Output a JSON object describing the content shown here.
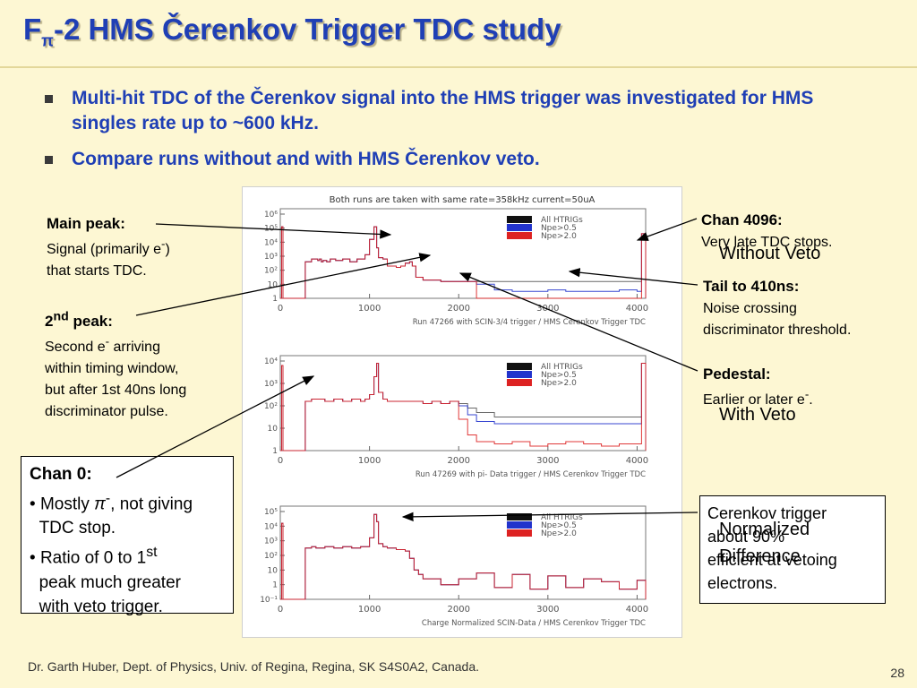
{
  "title": {
    "main": "F",
    "sub": "π",
    "rest": "-2 HMS Čerenkov Trigger TDC study"
  },
  "bullets": [
    "Multi-hit TDC of the Čerenkov signal into the HMS trigger was investigated for HMS singles rate up to ~600 kHz.",
    "Compare runs without and with HMS Čerenkov veto."
  ],
  "plots": {
    "header": "Both runs are taken with same rate=358kHz current=50uA",
    "panels": [
      {
        "caption": "Run 47266 with SCIN-3/4 trigger / HMS Cerenkov Trigger TDC",
        "y_ticks": [
          "10⁶",
          "10⁵",
          "10⁴",
          "10³",
          "10²",
          "10",
          "1"
        ]
      },
      {
        "caption": "Run 47269 with pi- Data trigger / HMS Cerenkov Trigger TDC",
        "y_ticks": [
          "10⁴",
          "10³",
          "10²",
          "10",
          "1"
        ]
      },
      {
        "caption": "Charge Normalized SCIN-Data / HMS Cerenkov Trigger TDC",
        "y_ticks": [
          "10⁵",
          "10⁴",
          "10³",
          "10²",
          "10",
          "1",
          "10⁻¹"
        ]
      }
    ],
    "x_ticks": [
      "0",
      "1000",
      "2000",
      "3000",
      "4000"
    ],
    "legend": [
      "All HTRIGs",
      "Npe>0.5",
      "Npe>2.0"
    ]
  },
  "chart_data": {
    "type": "line",
    "title": "Both runs are taken with same rate=358kHz current=50uA",
    "xlim": [
      0,
      4096
    ],
    "x_ticks": [
      0,
      1000,
      2000,
      3000,
      4000
    ],
    "log_y": true,
    "legend_placement": "top-right",
    "series": [
      {
        "name": "All HTRIGs",
        "color": "#111111"
      },
      {
        "name": "Npe>0.5",
        "color": "#2233cc"
      },
      {
        "name": "Npe>2.0",
        "color": "#dd2222"
      }
    ],
    "panels": [
      {
        "caption": "Run 47266 with SCIN-3/4 trigger / HMS Cerenkov Trigger TDC",
        "ylim_exp": [
          0,
          6
        ],
        "curves": {
          "x": [
            0,
            15,
            30,
            200,
            260,
            280,
            350,
            380,
            420,
            440,
            460,
            480,
            520,
            560,
            620,
            700,
            780,
            860,
            950,
            1000,
            1050,
            1080,
            1100,
            1150,
            1200,
            1300,
            1350,
            1400,
            1450,
            1480,
            1520,
            1600,
            1800,
            2000,
            2200,
            2400,
            2600,
            2800,
            3000,
            3200,
            3400,
            3600,
            3800,
            4000,
            4050,
            4096
          ],
          "top": [
            0,
            5.1,
            0,
            0,
            0,
            2.6,
            2.8,
            2.8,
            2.7,
            2.8,
            2.6,
            2.7,
            2.6,
            2.8,
            2.7,
            2.8,
            2.6,
            2.8,
            3.1,
            4.2,
            5.1,
            3.6,
            2.9,
            2.8,
            2.3,
            2.2,
            2.3,
            2.5,
            2.6,
            2.3,
            1.5,
            1.3,
            1.2,
            1.2,
            1.2,
            1.2,
            1.2,
            1.2,
            1.2,
            1.2,
            1.2,
            1.2,
            1.2,
            1.2,
            4.6,
            0
          ],
          "mid": [
            0,
            5.1,
            0,
            0,
            0,
            2.6,
            2.8,
            2.8,
            2.7,
            2.8,
            2.6,
            2.7,
            2.6,
            2.8,
            2.7,
            2.8,
            2.6,
            2.8,
            3.1,
            4.2,
            5.1,
            3.6,
            2.9,
            2.8,
            2.3,
            2.2,
            2.3,
            2.5,
            2.6,
            2.3,
            1.5,
            1.3,
            1.2,
            1.2,
            1.0,
            0.6,
            0.5,
            0.5,
            0.6,
            0.5,
            0.5,
            0.5,
            0.6,
            0.5,
            4.6,
            0
          ],
          "red": [
            0,
            5.1,
            0,
            0,
            0,
            2.6,
            2.8,
            2.8,
            2.7,
            2.8,
            2.6,
            2.7,
            2.6,
            2.8,
            2.7,
            2.8,
            2.6,
            2.8,
            3.1,
            4.2,
            5.1,
            3.6,
            2.9,
            2.8,
            2.3,
            2.2,
            2.3,
            2.5,
            2.6,
            2.3,
            1.5,
            1.3,
            1.2,
            1.2,
            0.0,
            0.0,
            0.0,
            0.0,
            0.0,
            0.0,
            0.0,
            0.0,
            0.0,
            0.0,
            4.6,
            0
          ]
        }
      },
      {
        "caption": "Run 47269 with pi- Data trigger / HMS Cerenkov Trigger TDC",
        "ylim_exp": [
          0,
          4
        ],
        "curves": {
          "x": [
            0,
            15,
            30,
            200,
            260,
            280,
            350,
            400,
            500,
            600,
            700,
            800,
            900,
            950,
            1000,
            1050,
            1080,
            1100,
            1150,
            1200,
            1300,
            1400,
            1500,
            1600,
            1700,
            1800,
            1900,
            2000,
            2100,
            2200,
            2400,
            2600,
            2800,
            3000,
            3200,
            3400,
            3600,
            3800,
            4000,
            4050,
            4096
          ],
          "top": [
            0,
            3.8,
            0,
            0,
            0,
            2.2,
            2.3,
            2.3,
            2.2,
            2.3,
            2.2,
            2.3,
            2.2,
            2.3,
            2.5,
            3.3,
            3.9,
            2.6,
            2.3,
            2.2,
            2.2,
            2.2,
            2.2,
            2.1,
            2.2,
            2.1,
            2.2,
            2.1,
            1.9,
            1.7,
            1.5,
            1.5,
            1.5,
            1.5,
            1.5,
            1.5,
            1.5,
            1.5,
            1.5,
            3.9,
            0
          ],
          "mid": [
            0,
            3.8,
            0,
            0,
            0,
            2.2,
            2.3,
            2.3,
            2.2,
            2.3,
            2.2,
            2.3,
            2.2,
            2.3,
            2.5,
            3.3,
            3.9,
            2.6,
            2.3,
            2.2,
            2.2,
            2.2,
            2.2,
            2.1,
            2.2,
            2.1,
            2.2,
            2.0,
            1.6,
            1.3,
            1.2,
            1.2,
            1.2,
            1.2,
            1.2,
            1.2,
            1.2,
            1.2,
            1.2,
            3.9,
            0
          ],
          "red": [
            0,
            3.8,
            0,
            0,
            0,
            2.2,
            2.3,
            2.3,
            2.2,
            2.3,
            2.2,
            2.3,
            2.2,
            2.3,
            2.5,
            3.3,
            3.9,
            2.6,
            2.3,
            2.2,
            2.2,
            2.2,
            2.2,
            2.1,
            2.2,
            2.1,
            2.2,
            1.4,
            0.7,
            0.4,
            0.3,
            0.4,
            0.2,
            0.3,
            0.4,
            0.3,
            0.2,
            0.3,
            0.3,
            3.9,
            0
          ]
        }
      },
      {
        "caption": "Charge Normalized SCIN-Data / HMS Cerenkov Trigger TDC",
        "ylim_exp": [
          -1,
          5
        ],
        "curves": {
          "x": [
            0,
            15,
            30,
            200,
            260,
            280,
            350,
            400,
            500,
            600,
            700,
            800,
            900,
            950,
            1000,
            1050,
            1080,
            1100,
            1150,
            1200,
            1300,
            1400,
            1450,
            1500,
            1550,
            1600,
            1800,
            2000,
            2200,
            2400,
            2600,
            2800,
            3000,
            3200,
            3400,
            3600,
            3800,
            4000,
            4096
          ],
          "top": [
            -1,
            4.2,
            -1,
            -1,
            -1,
            2.5,
            2.6,
            2.5,
            2.6,
            2.5,
            2.6,
            2.5,
            2.6,
            2.6,
            3.2,
            4.8,
            4.3,
            2.8,
            2.6,
            2.5,
            2.4,
            2.3,
            1.8,
            1.0,
            0.7,
            0.4,
            0.0,
            0.4,
            0.8,
            -0.2,
            0.7,
            -0.3,
            0.6,
            -0.2,
            0.4,
            0.2,
            -0.3,
            0.3,
            -1
          ],
          "mid": [
            -1,
            4.2,
            -1,
            -1,
            -1,
            2.5,
            2.6,
            2.5,
            2.6,
            2.5,
            2.6,
            2.5,
            2.6,
            2.6,
            3.2,
            4.8,
            4.3,
            2.8,
            2.6,
            2.5,
            2.4,
            2.3,
            1.8,
            1.0,
            0.7,
            0.4,
            0.0,
            0.4,
            0.8,
            -0.2,
            0.7,
            -0.3,
            0.6,
            -0.2,
            0.4,
            0.2,
            -0.3,
            0.3,
            -1
          ],
          "red": [
            -1,
            4.2,
            -1,
            -1,
            -1,
            2.5,
            2.6,
            2.5,
            2.6,
            2.5,
            2.6,
            2.5,
            2.6,
            2.6,
            3.2,
            4.8,
            4.3,
            2.8,
            2.6,
            2.5,
            2.4,
            2.3,
            1.8,
            1.0,
            0.7,
            0.4,
            0.0,
            0.4,
            0.8,
            -0.2,
            0.7,
            -0.3,
            0.6,
            -0.2,
            0.4,
            0.2,
            -0.3,
            0.3,
            -1
          ]
        }
      }
    ]
  },
  "annotations": {
    "main_peak": {
      "title": "Main peak:",
      "l1a": "Signal (primarily e",
      "l1sup": "-",
      "l1b": ")",
      "l2": "that starts TDC."
    },
    "second_peak": {
      "t1": "2",
      "tsup": "nd",
      "t2": " peak:",
      "l1a": "Second e",
      "l1sup": "-",
      "l1b": " arriving",
      "l2": "within timing window,",
      "l3": "but after 1st 40ns long",
      "l4": "discriminator pulse."
    },
    "chan0": {
      "title": "Chan 0:",
      "b1a": "Mostly ",
      "b1pi": "π",
      "b1sup": "-",
      "b1b": ", not giving",
      "b1c": "TDC stop.",
      "b2a": "Ratio of 0 to 1",
      "b2sup": "st",
      "b2b": "peak much greater",
      "b2c": "with veto trigger."
    },
    "chan4096": {
      "title": "Chan 4096:",
      "l1": "Very late TDC stops."
    },
    "tail": {
      "title": "Tail to 410ns:",
      "l1": "Noise crossing",
      "l2": "discriminator threshold."
    },
    "pedestal": {
      "title": "Pedestal:",
      "l1a": "Earlier or later e",
      "l1sup": "-",
      "l1b": "."
    },
    "cerenkov_box": {
      "l1": "Cerenkov trigger",
      "l2": "about 90%",
      "l3": "efficient at vetoing",
      "l4": "electrons."
    }
  },
  "overlays": {
    "without_veto": "Without Veto",
    "with_veto": "With Veto",
    "normalized1": "Normalized",
    "normalized2": "Difference"
  },
  "footer": "Dr. Garth Huber, Dept. of Physics, Univ. of Regina, Regina, SK S4S0A2, Canada.",
  "page_number": "28"
}
